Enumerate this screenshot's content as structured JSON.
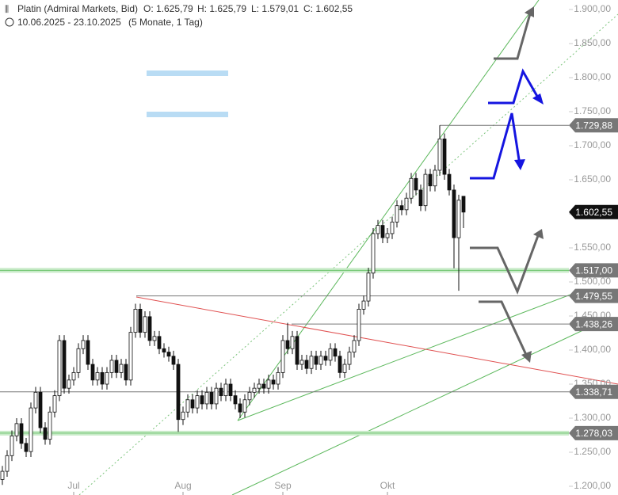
{
  "chart_data": {
    "type": "candlestick",
    "title": "Platin (Admiral Markets, Bid)",
    "quote": [
      "O: 1.625,79",
      "H: 1.625,79",
      "L: 1.579,01",
      "C: 1.602,55"
    ],
    "range": "10.06.2025 - 23.10.2025",
    "period": "(5 Monate, 1 Tag)",
    "categories": [
      null,
      null,
      null,
      null,
      null,
      null,
      null,
      null,
      null,
      null,
      null,
      null,
      null,
      null,
      null,
      "Jul",
      null,
      null,
      null,
      null,
      null,
      null,
      null,
      null,
      null,
      null,
      null,
      null,
      null,
      null,
      null,
      null,
      null,
      null,
      null,
      null,
      null,
      null,
      "Aug",
      null,
      null,
      null,
      null,
      null,
      null,
      null,
      null,
      null,
      null,
      null,
      null,
      null,
      null,
      null,
      null,
      null,
      null,
      null,
      null,
      "Sep",
      null,
      null,
      null,
      null,
      null,
      null,
      null,
      null,
      null,
      null,
      null,
      null,
      null,
      null,
      null,
      null,
      null,
      null,
      null,
      null,
      null,
      "Okt",
      null,
      null,
      null,
      null,
      null,
      null,
      null,
      null,
      null,
      null,
      null,
      null,
      null,
      null,
      null,
      null
    ],
    "open": [
      1210,
      1222,
      1245,
      1274,
      1292,
      1263,
      1251,
      1315,
      1338,
      1286,
      1269,
      1309,
      1333,
      1414,
      1344,
      1356,
      1367,
      1402,
      1414,
      1379,
      1356,
      1367,
      1350,
      1367,
      1385,
      1367,
      1379,
      1356,
      1426,
      1460,
      1426,
      1449,
      1414,
      1420,
      1402,
      1397,
      1391,
      1379,
      1298,
      1309,
      1327,
      1315,
      1333,
      1321,
      1338,
      1321,
      1344,
      1333,
      1350,
      1333,
      1321,
      1309,
      1327,
      1338,
      1344,
      1350,
      1344,
      1356,
      1350,
      1367,
      1414,
      1402,
      1420,
      1379,
      1385,
      1373,
      1391,
      1379,
      1391,
      1385,
      1402,
      1391,
      1367,
      1379,
      1397,
      1414,
      1460,
      1472,
      1513,
      1571,
      1583,
      1565,
      1571,
      1588,
      1612,
      1606,
      1623,
      1652,
      1635,
      1612,
      1658,
      1641,
      1664,
      1710,
      1658,
      1635,
      1565,
      1625.79
    ],
    "high": [
      1230,
      1253,
      1282,
      1300,
      1300,
      1271,
      1323,
      1346,
      1346,
      1294,
      1317,
      1341,
      1422,
      1422,
      1364,
      1375,
      1410,
      1422,
      1422,
      1387,
      1375,
      1375,
      1375,
      1393,
      1393,
      1387,
      1387,
      1434,
      1468,
      1468,
      1457,
      1457,
      1428,
      1428,
      1410,
      1405,
      1399,
      1387,
      1317,
      1335,
      1335,
      1341,
      1341,
      1346,
      1346,
      1352,
      1352,
      1358,
      1358,
      1341,
      1329,
      1335,
      1346,
      1352,
      1358,
      1358,
      1364,
      1364,
      1375,
      1422,
      1440,
      1428,
      1428,
      1393,
      1393,
      1399,
      1399,
      1399,
      1399,
      1410,
      1410,
      1399,
      1387,
      1405,
      1422,
      1468,
      1480,
      1521,
      1579,
      1591,
      1591,
      1579,
      1596,
      1620,
      1620,
      1631,
      1660,
      1660,
      1643,
      1666,
      1666,
      1672,
      1729.88,
      1718,
      1666,
      1643,
      1628,
      1625.79
    ],
    "low": [
      1202,
      1214,
      1237,
      1266,
      1255,
      1243,
      1243,
      1307,
      1278,
      1261,
      1261,
      1301,
      1325,
      1336,
      1336,
      1348,
      1359,
      1394,
      1371,
      1348,
      1348,
      1342,
      1342,
      1359,
      1359,
      1359,
      1348,
      1348,
      1418,
      1418,
      1418,
      1406,
      1406,
      1394,
      1389,
      1383,
      1371,
      1280,
      1290,
      1301,
      1307,
      1307,
      1313,
      1313,
      1313,
      1313,
      1325,
      1325,
      1325,
      1313,
      1300,
      1301,
      1319,
      1330,
      1336,
      1336,
      1336,
      1342,
      1342,
      1359,
      1394,
      1394,
      1371,
      1371,
      1365,
      1365,
      1371,
      1371,
      1377,
      1377,
      1383,
      1359,
      1359,
      1371,
      1389,
      1406,
      1452,
      1464,
      1505,
      1563,
      1557,
      1557,
      1563,
      1580,
      1598,
      1598,
      1615,
      1627,
      1604,
      1604,
      1633,
      1633,
      1656,
      1650,
      1627,
      1520,
      1487,
      1579.01
    ],
    "close": [
      1222,
      1245,
      1274,
      1292,
      1263,
      1251,
      1315,
      1338,
      1286,
      1269,
      1309,
      1333,
      1414,
      1344,
      1356,
      1367,
      1402,
      1414,
      1379,
      1356,
      1367,
      1350,
      1367,
      1385,
      1367,
      1379,
      1356,
      1426,
      1460,
      1426,
      1449,
      1414,
      1420,
      1402,
      1397,
      1391,
      1379,
      1298,
      1309,
      1327,
      1315,
      1333,
      1321,
      1338,
      1321,
      1344,
      1333,
      1350,
      1333,
      1321,
      1309,
      1327,
      1338,
      1344,
      1350,
      1344,
      1356,
      1350,
      1367,
      1414,
      1402,
      1420,
      1379,
      1385,
      1373,
      1391,
      1379,
      1391,
      1385,
      1402,
      1391,
      1367,
      1379,
      1397,
      1414,
      1460,
      1472,
      1513,
      1571,
      1583,
      1565,
      1571,
      1588,
      1612,
      1606,
      1623,
      1652,
      1635,
      1612,
      1658,
      1641,
      1664,
      1710,
      1658,
      1635,
      1565,
      1620,
      1602.55
    ],
    "ylim": [
      1200,
      1900
    ],
    "yticks": [
      {
        "value": 1200,
        "label": "1.200,00"
      },
      {
        "value": 1250,
        "label": "1.250,00"
      },
      {
        "value": 1300,
        "label": "1.300,00"
      },
      {
        "value": 1350,
        "label": "1.350,00"
      },
      {
        "value": 1400,
        "label": "1.400,00"
      },
      {
        "value": 1450,
        "label": "1.450,00"
      },
      {
        "value": 1500,
        "label": "1.500,00"
      },
      {
        "value": 1550,
        "label": "1.550,00"
      },
      {
        "value": 1600,
        "label": "1.600,00"
      },
      {
        "value": 1650,
        "label": "1.650,00"
      },
      {
        "value": 1700,
        "label": "1.700,00"
      },
      {
        "value": 1750,
        "label": "1.750,00"
      },
      {
        "value": 1800,
        "label": "1.800,00"
      },
      {
        "value": 1850,
        "label": "1.850,00"
      },
      {
        "value": 1900,
        "label": "1.900,00"
      }
    ],
    "levels": [
      {
        "value": 1729.88,
        "label": "1.729,88"
      },
      {
        "value": 1517,
        "label": "1.517,00"
      },
      {
        "value": 1479.55,
        "label": "1.479,55"
      },
      {
        "value": 1438.26,
        "label": "1.438,26"
      },
      {
        "value": 1338.71,
        "label": "1.338,71"
      },
      {
        "value": 1278.03,
        "label": "1.278,03"
      }
    ],
    "current_price": {
      "value": 1602.55,
      "label": "1.602,55"
    }
  }
}
